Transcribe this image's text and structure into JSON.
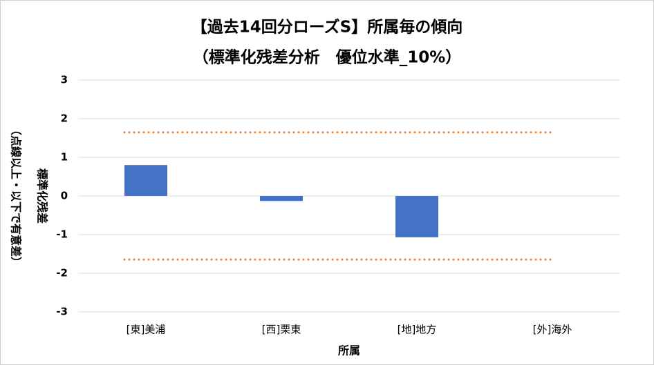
{
  "chart_data": {
    "type": "bar",
    "title": "【過去14回分ローズS】所属毎の傾向",
    "subtitle": "（標準化残差分析　優位水準_10%）",
    "y_label": "標準化残差",
    "y_label_note": "（点線以上・以下で有意差）",
    "x_label": "所属",
    "categories": [
      "[東]美浦",
      "[西]栗東",
      "[地]地方",
      "[外]海外"
    ],
    "values": [
      0.8,
      -0.13,
      -1.07,
      null
    ],
    "color": "#4472c4",
    "reference_lines": [
      1.645,
      -1.645
    ],
    "reference_color": "#ed7d31",
    "ylim": [
      -3,
      3
    ],
    "yticks": [
      -3,
      -2,
      -1,
      0,
      1,
      2,
      3
    ],
    "grid": true
  }
}
